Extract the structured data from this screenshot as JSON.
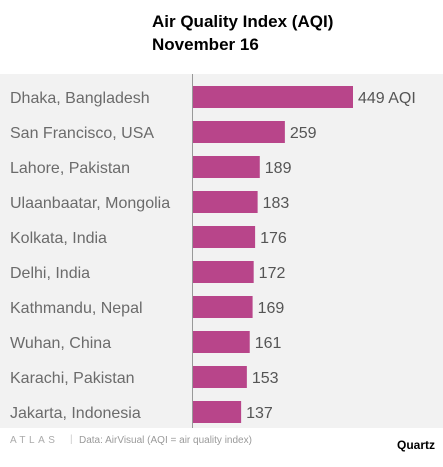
{
  "header": {
    "title": "Air Quality Index (AQI)",
    "subtitle": "November 16"
  },
  "chart_data": {
    "type": "bar",
    "orientation": "horizontal",
    "title": "Air Quality Index (AQI)",
    "subtitle": "November 16",
    "categories": [
      "Dhaka, Bangladesh",
      "San Francisco, USA",
      "Lahore, Pakistan",
      "Ulaanbaatar, Mongolia",
      "Kolkata, India",
      "Delhi, India",
      "Kathmandu, Nepal",
      "Wuhan, China",
      "Karachi, Pakistan",
      "Jakarta, Indonesia"
    ],
    "values": [
      449,
      259,
      189,
      183,
      176,
      172,
      169,
      161,
      153,
      137
    ],
    "value_labels": [
      "449 AQI",
      "259",
      "189",
      "183",
      "176",
      "172",
      "169",
      "161",
      "153",
      "137"
    ],
    "xlim": [
      0,
      449
    ],
    "bar_color": "#b8458a",
    "grid": false
  },
  "colors": {
    "bar": "#b8458a",
    "plot_background": "#f2f2f2",
    "category_label": "#6b6b6b",
    "value_label": "#555555",
    "axis": "#999999"
  },
  "footer": {
    "logo": "ATLAS",
    "separator": "|",
    "source": "Data: AirVisual (AQI = air quality index)",
    "brand": "Quartz"
  }
}
